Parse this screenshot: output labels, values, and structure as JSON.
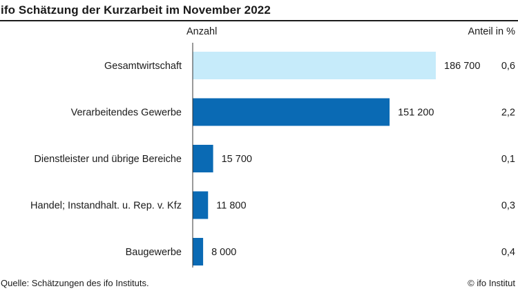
{
  "header": {
    "title": "ifo Schätzung der Kurzarbeit im November 2022",
    "col_left": "Anzahl",
    "col_right": "Anteil in %"
  },
  "footer": {
    "source": "Quelle: Schätzungen des ifo Instituts.",
    "copyright": "© ifo Institut"
  },
  "colors": {
    "highlight": "#c6ebfa",
    "bar": "#0a6ab4",
    "axis": "#333333"
  },
  "chart_data": {
    "type": "bar",
    "orientation": "horizontal",
    "title": "ifo Schätzung der Kurzarbeit im November 2022",
    "xlabel": "Anzahl",
    "ylabel": "",
    "grid": false,
    "xlim": [
      0,
      186700
    ],
    "categories": [
      "Gesamtwirtschaft",
      "Verarbeitendes Gewerbe",
      "Dienstleister und übrige Bereiche",
      "Handel; Instandhalt. u. Rep. v. Kfz",
      "Baugewerbe"
    ],
    "values": [
      186700,
      151200,
      15700,
      11800,
      8000
    ],
    "value_labels": [
      "186 700",
      "151 200",
      "15 700",
      "11 800",
      "8 000"
    ],
    "share_label": "Anteil in %",
    "shares": [
      "0,6",
      "2,2",
      "0,1",
      "0,3",
      "0,4"
    ],
    "highlighted": [
      "Gesamtwirtschaft"
    ]
  }
}
